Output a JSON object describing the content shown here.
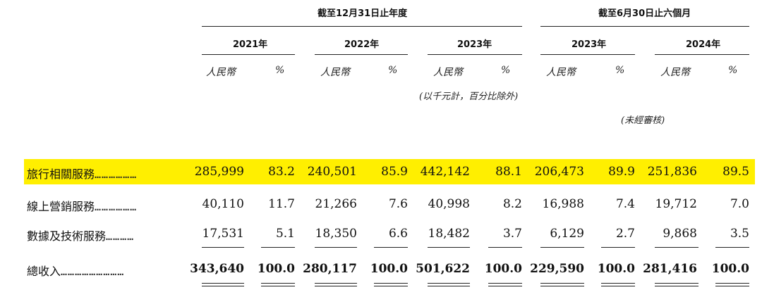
{
  "header": {
    "group_fy": "截至12月31日止年度",
    "group_6m": "截至6月30日止六個月",
    "years": [
      "2021年",
      "2022年",
      "2023年",
      "2023年",
      "2024年"
    ],
    "unit_rmb": "人民幣",
    "unit_pct": "%",
    "note_thousands": "(以千元計，百分比除外)",
    "note_unaudited": "(未經審核)"
  },
  "rows": [
    {
      "label": "旅行相關服務",
      "dots": "………………",
      "values": [
        "285,999",
        "83.2",
        "240,501",
        "85.9",
        "442,142",
        "88.1",
        "206,473",
        "89.9",
        "251,836",
        "89.5"
      ]
    },
    {
      "label": "線上營銷服務",
      "dots": "………………",
      "values": [
        "40,110",
        "11.7",
        "21,266",
        "7.6",
        "40,998",
        "8.2",
        "16,988",
        "7.4",
        "19,712",
        "7.0"
      ]
    },
    {
      "label": "數據及技術服務",
      "dots": "…………",
      "values": [
        "17,531",
        "5.1",
        "18,350",
        "6.6",
        "18,482",
        "3.7",
        "6,129",
        "2.7",
        "9,868",
        "3.5"
      ]
    },
    {
      "label": "總收入",
      "dots": "………………………",
      "values": [
        "343,640",
        "100.0",
        "280,117",
        "100.0",
        "501,622",
        "100.0",
        "229,590",
        "100.0",
        "281,416",
        "100.0"
      ]
    }
  ],
  "colors": {
    "highlight": "#ffef00",
    "text": "#111111"
  }
}
